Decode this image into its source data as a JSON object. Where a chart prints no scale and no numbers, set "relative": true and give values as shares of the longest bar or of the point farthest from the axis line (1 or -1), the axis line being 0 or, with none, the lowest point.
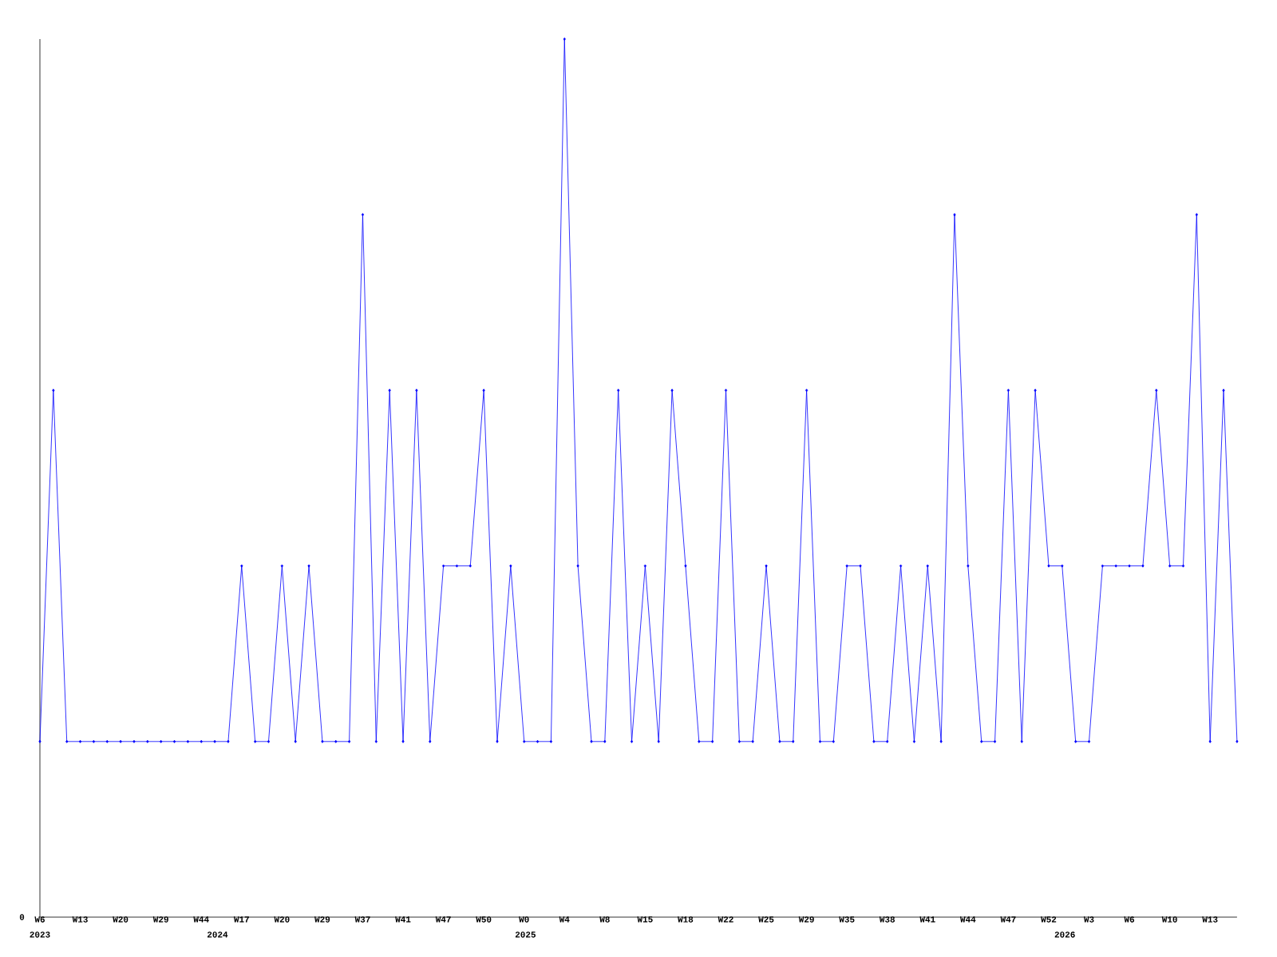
{
  "chart_data": {
    "type": "line",
    "relative": true,
    "marker": "diamond",
    "grid": false,
    "categories": [
      "W6",
      null,
      null,
      "W13",
      null,
      null,
      "W20",
      null,
      null,
      "W29",
      null,
      null,
      "W44",
      null,
      null,
      "W17",
      null,
      null,
      "W20",
      null,
      null,
      "W29",
      null,
      null,
      "W37",
      null,
      null,
      "W41",
      null,
      null,
      "W47",
      null,
      null,
      "W50",
      null,
      null,
      "W0",
      null,
      null,
      "W4",
      null,
      null,
      "W8",
      null,
      null,
      "W15",
      null,
      null,
      "W18",
      null,
      null,
      "W22",
      null,
      null,
      "W25",
      null,
      null,
      "W29",
      null,
      null,
      "W35",
      null,
      null,
      "W38",
      null,
      null,
      "W41",
      null,
      null,
      "W44",
      null,
      null,
      "W47",
      null,
      null,
      "W52",
      null,
      null,
      "W3",
      null,
      null,
      "W6",
      null,
      null,
      "W10",
      null,
      null,
      "W13",
      null,
      null
    ],
    "series": [
      {
        "color": "#0000ff",
        "values": [
          0.2,
          0.6,
          0.2,
          0.2,
          0.2,
          0.2,
          0.2,
          0.2,
          0.2,
          0.2,
          0.2,
          0.2,
          0.2,
          0.2,
          0.2,
          0.4,
          0.2,
          0.2,
          0.4,
          0.2,
          0.4,
          0.2,
          0.2,
          0.2,
          0.8,
          0.2,
          0.6,
          0.2,
          0.6,
          0.2,
          0.4,
          0.4,
          0.4,
          0.6,
          0.2,
          0.4,
          0.2,
          0.2,
          0.2,
          1.0,
          0.4,
          0.2,
          0.2,
          0.6,
          0.2,
          0.4,
          0.2,
          0.6,
          0.4,
          0.2,
          0.2,
          0.6,
          0.2,
          0.2,
          0.4,
          0.2,
          0.2,
          0.6,
          0.2,
          0.2,
          0.4,
          0.4,
          0.2,
          0.2,
          0.4,
          0.2,
          0.4,
          0.2,
          0.8,
          0.4,
          0.2,
          0.2,
          0.6,
          0.2,
          0.6,
          0.4,
          0.4,
          0.2,
          0.2,
          0.4,
          0.4,
          0.4,
          0.4,
          0.6,
          0.4,
          0.4,
          0.8,
          0.2,
          0.6,
          0.2
        ]
      }
    ],
    "annotations": [
      "0",
      "2023",
      "2024",
      "2025",
      "2026"
    ]
  }
}
